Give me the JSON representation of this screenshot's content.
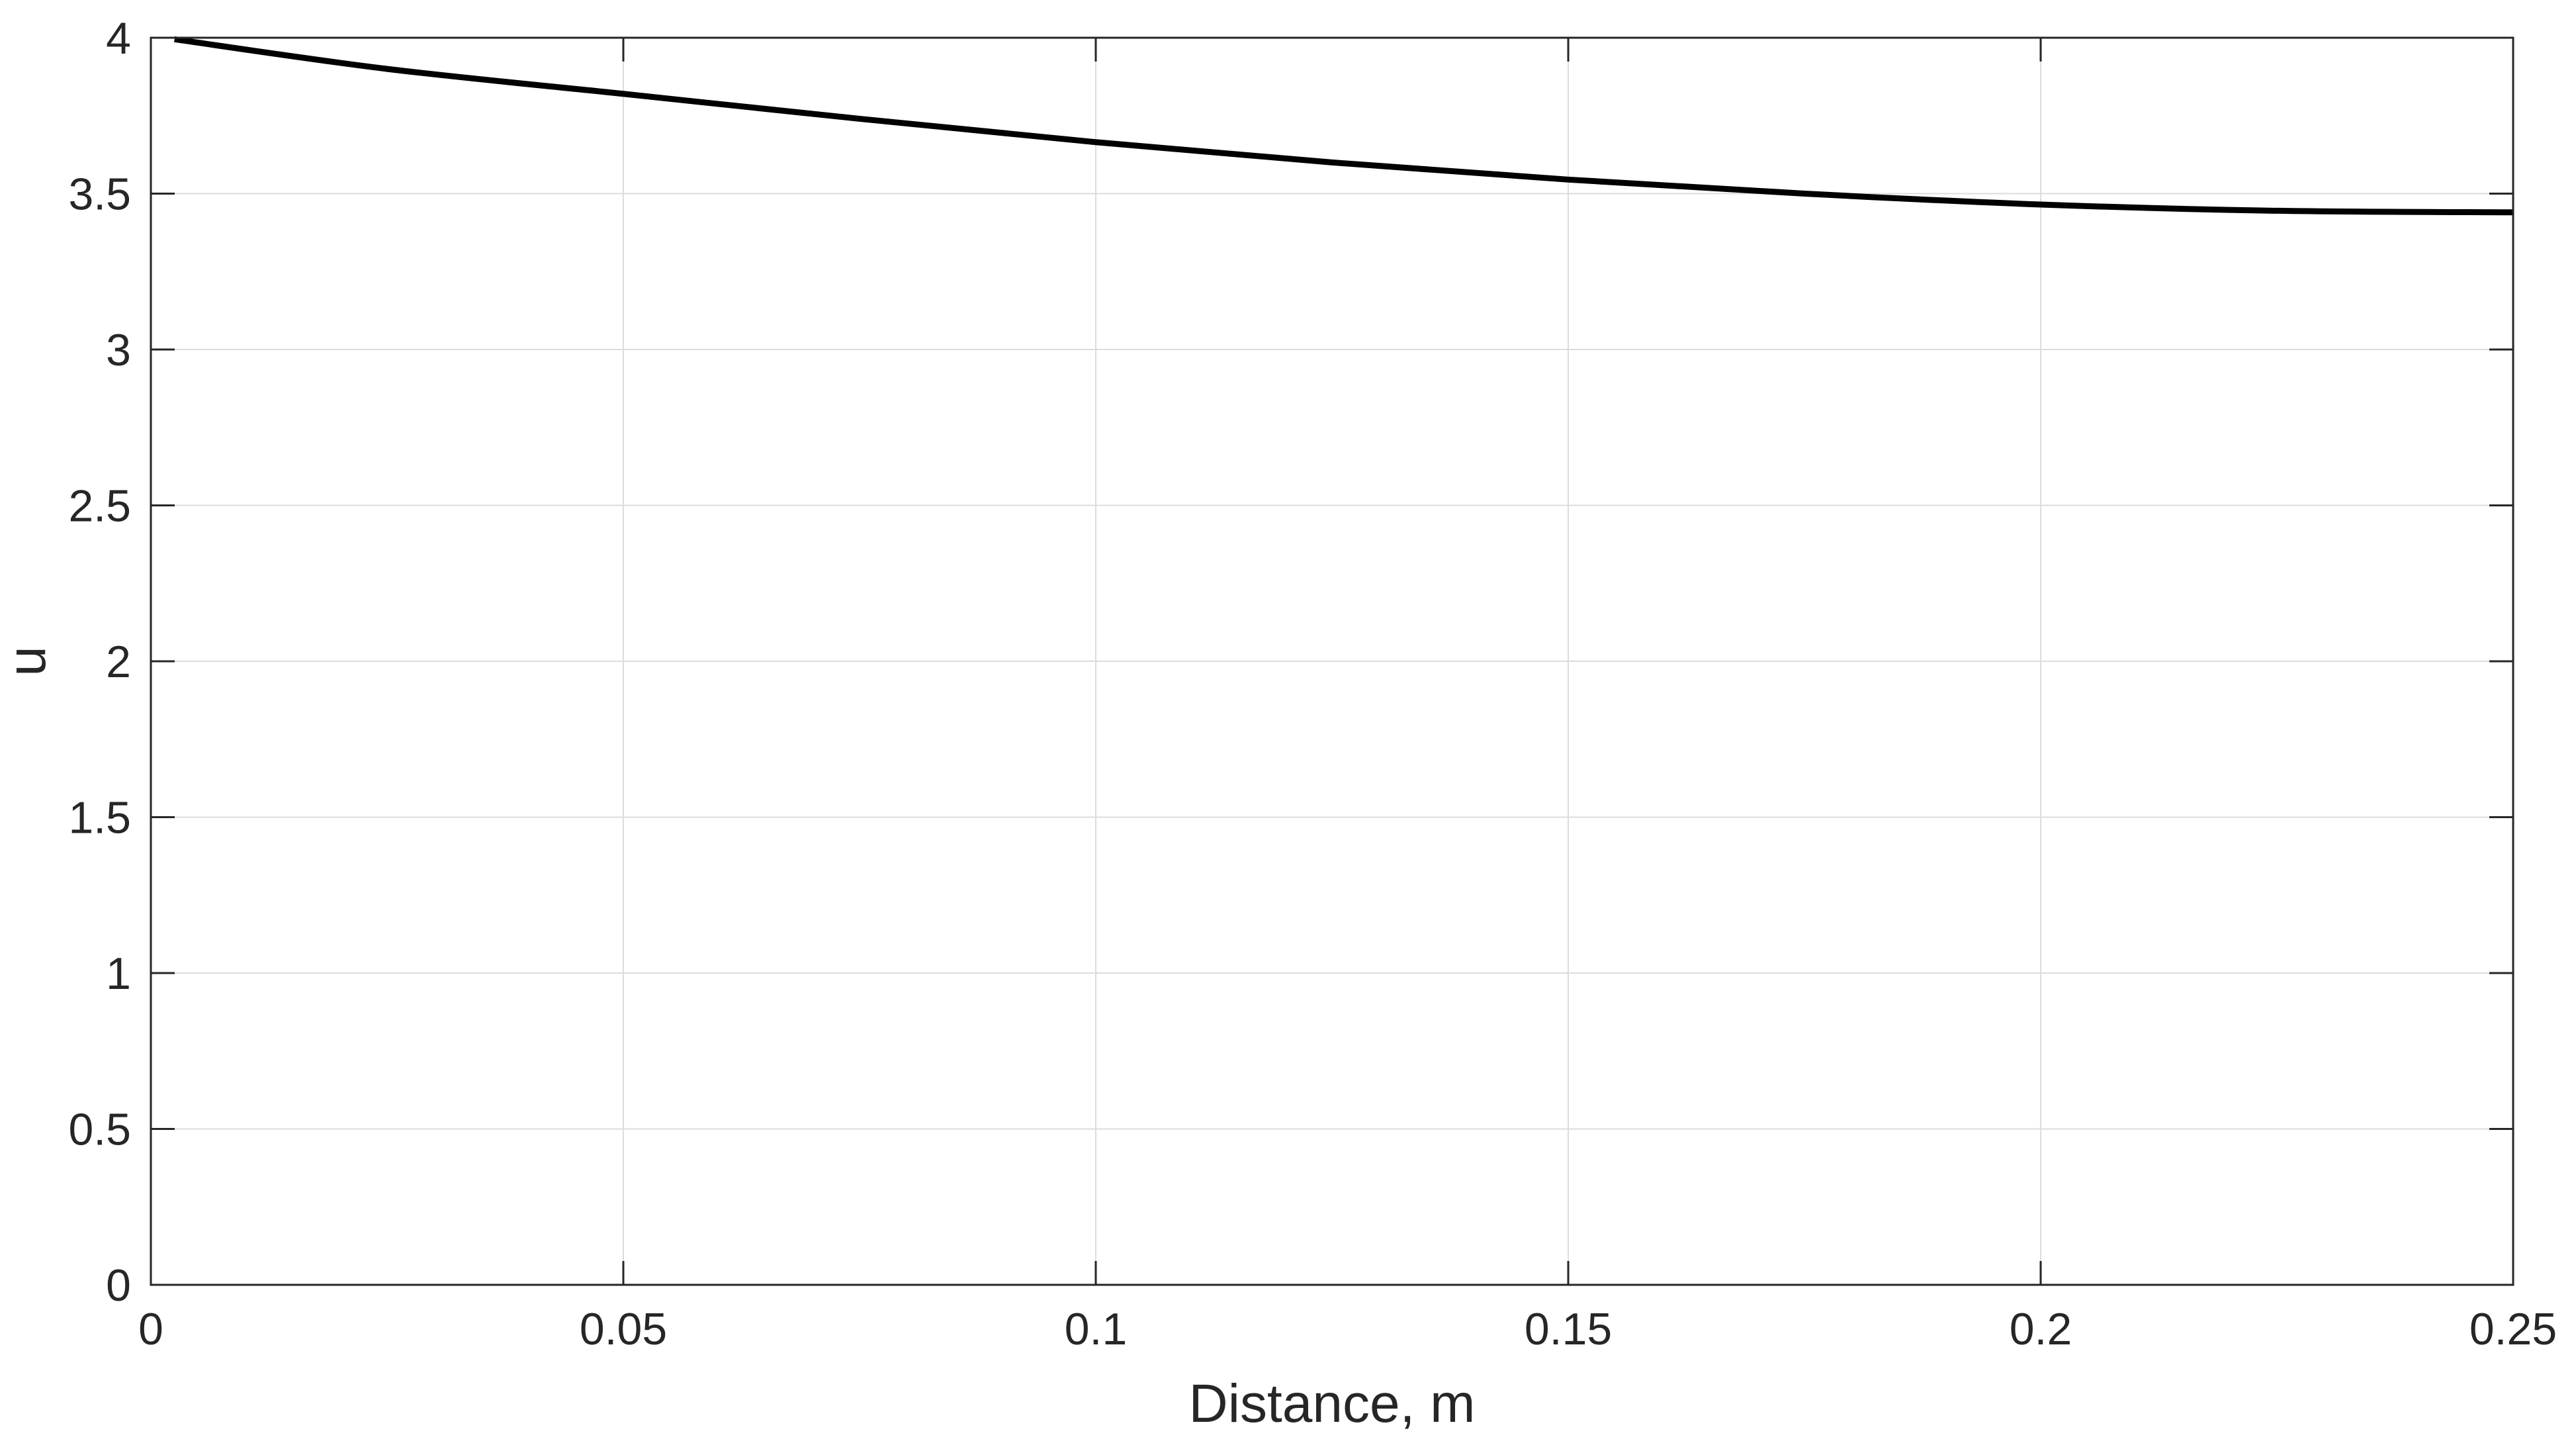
{
  "chart_data": {
    "type": "line",
    "title": "",
    "xlabel": "Distance, m",
    "ylabel": "u",
    "xlim": [
      0,
      0.25
    ],
    "ylim": [
      0,
      4
    ],
    "grid": true,
    "x_ticks": [
      0,
      0.05,
      0.1,
      0.15,
      0.2,
      0.25
    ],
    "x_tick_labels": [
      "0",
      "0.05",
      "0.1",
      "0.15",
      "0.2",
      "0.25"
    ],
    "y_ticks": [
      0,
      0.5,
      1,
      1.5,
      2,
      2.5,
      3,
      3.5,
      4
    ],
    "y_tick_labels": [
      "0",
      "0.5",
      "1",
      "1.5",
      "2",
      "2.5",
      "3",
      "3.5",
      "4"
    ],
    "series": [
      {
        "color": "#000000",
        "x": [
          0.0025,
          0.025,
          0.05,
          0.075,
          0.1,
          0.125,
          0.15,
          0.175,
          0.2,
          0.225,
          0.25
        ],
        "y": [
          3.995,
          3.9,
          3.82,
          3.74,
          3.665,
          3.6,
          3.545,
          3.5,
          3.465,
          3.445,
          3.44
        ]
      }
    ]
  }
}
